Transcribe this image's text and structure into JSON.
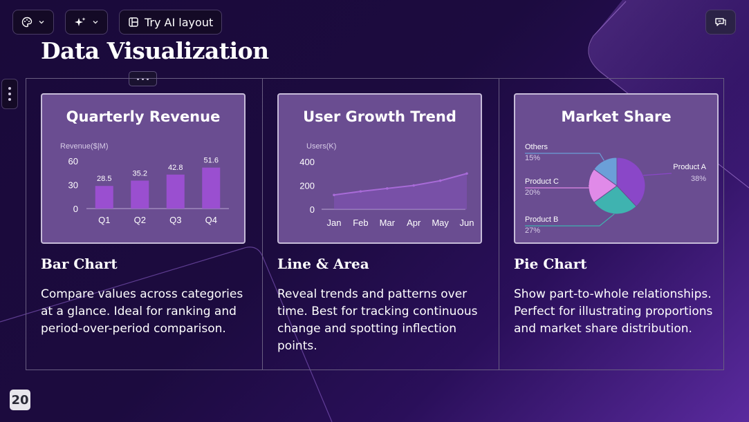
{
  "toolbar": {
    "theme_icon": "palette-icon",
    "ai_icon": "sparkle-icon",
    "try_ai_label": "Try AI layout"
  },
  "chat_icon": "chat-icon",
  "page_title": "Data Visualization",
  "page_number": "20",
  "columns": [
    {
      "heading": "Bar Chart",
      "description": "Compare values across categories at a glance. Ideal for ranking and period-over-period comparison.",
      "card_title": "Quarterly Revenue"
    },
    {
      "heading": "Line & Area",
      "description": "Reveal trends and patterns over time. Best for tracking continuous change and spotting inflection points.",
      "card_title": "User Growth Trend"
    },
    {
      "heading": "Pie Chart",
      "description": "Show part-to-whole relationships. Perfect for illustrating proportions and market share distribution.",
      "card_title": "Market Share"
    }
  ],
  "colors": {
    "bar": "#9a4fd0",
    "line": "#a86bd8",
    "pie_a": "#8a47c8",
    "pie_b": "#3fb3b0",
    "pie_c": "#e08ae8",
    "pie_others": "#6b9fd8"
  },
  "chart_data": [
    {
      "type": "bar",
      "title": "Quarterly Revenue",
      "ylabel": "Revenue($|M)",
      "categories": [
        "Q1",
        "Q2",
        "Q3",
        "Q4"
      ],
      "values": [
        28.5,
        35.2,
        42.8,
        51.6
      ],
      "ylim": [
        0,
        60
      ],
      "yticks": [
        "0",
        "30",
        "60"
      ],
      "grid": false
    },
    {
      "type": "area",
      "title": "User Growth Trend",
      "ylabel": "Users(K)",
      "categories": [
        "Jan",
        "Feb",
        "Mar",
        "Apr",
        "May",
        "Jun"
      ],
      "values": [
        120,
        150,
        175,
        200,
        240,
        300
      ],
      "ylim": [
        0,
        400
      ],
      "yticks": [
        "0",
        "200",
        "400"
      ],
      "grid": false
    },
    {
      "type": "pie",
      "title": "Market Share",
      "slices": [
        {
          "name": "Product A",
          "value": 38,
          "label": "38%"
        },
        {
          "name": "Product B",
          "value": 27,
          "label": "27%"
        },
        {
          "name": "Product C",
          "value": 20,
          "label": "20%"
        },
        {
          "name": "Others",
          "value": 15,
          "label": "15%"
        }
      ]
    }
  ]
}
